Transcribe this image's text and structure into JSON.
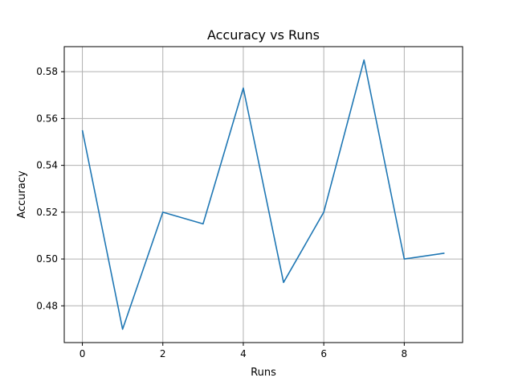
{
  "chart_data": {
    "type": "line",
    "title": "Accuracy vs Runs",
    "xlabel": "Runs",
    "ylabel": "Accuracy",
    "xlim": [
      -0.45,
      9.45
    ],
    "ylim": [
      0.4643,
      0.5907
    ],
    "grid": true,
    "colors": {
      "line": "#1f77b4",
      "grid": "#b0b0b0",
      "axes": "#000000"
    },
    "x_ticks": [
      0,
      2,
      4,
      6,
      8
    ],
    "x_tick_labels": [
      "0",
      "2",
      "4",
      "6",
      "8"
    ],
    "y_ticks": [
      0.48,
      0.5,
      0.52,
      0.54,
      0.56,
      0.58
    ],
    "y_tick_labels": [
      "0.48",
      "0.50",
      "0.52",
      "0.54",
      "0.56",
      "0.58"
    ],
    "series": [
      {
        "x": [
          0,
          1,
          2,
          3,
          4,
          5,
          6,
          7,
          8,
          9
        ],
        "values": [
          0.555,
          0.47,
          0.52,
          0.515,
          0.573,
          0.49,
          0.52,
          0.585,
          0.5,
          0.5025
        ]
      }
    ]
  }
}
